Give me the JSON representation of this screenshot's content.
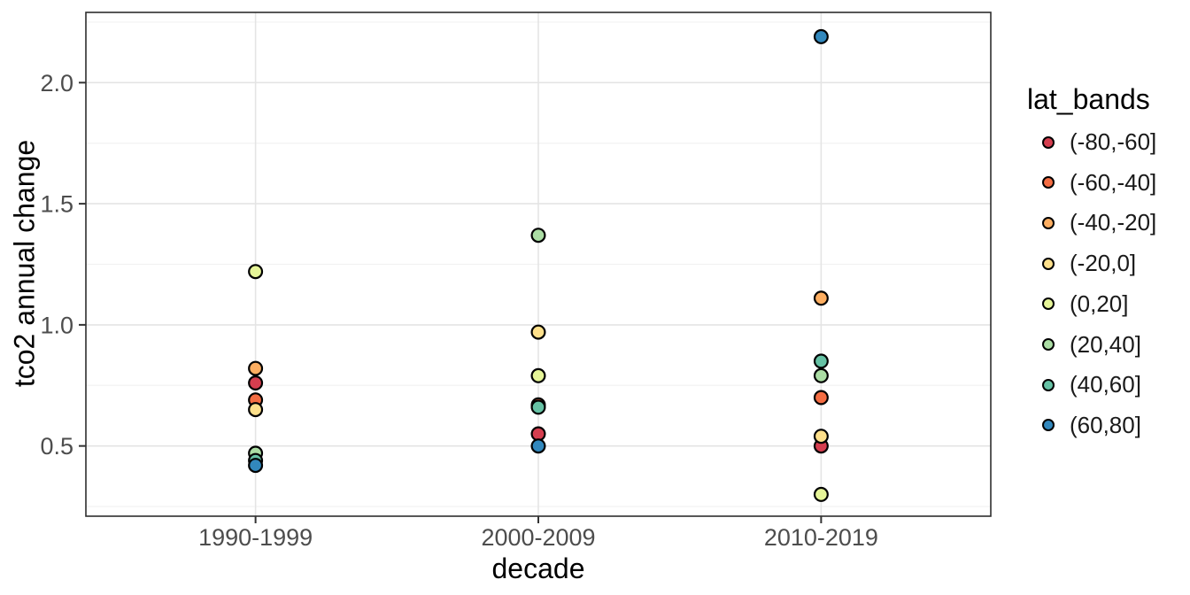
{
  "chart_data": {
    "type": "scatter",
    "title": "",
    "xlabel": "decade",
    "ylabel": "tco2 annual change",
    "categories": [
      "1990-1999",
      "2000-2009",
      "2010-2019"
    ],
    "series": [
      {
        "band": "(-80,-60]",
        "color": "#D53E4F",
        "values": [
          0.76,
          0.55,
          0.5
        ]
      },
      {
        "band": "(-60,-40]",
        "color": "#F46D43",
        "values": [
          0.69,
          0.67,
          0.7
        ]
      },
      {
        "band": "(-40,-20]",
        "color": "#FDAE61",
        "values": [
          0.82,
          null,
          1.11
        ]
      },
      {
        "band": "(-20,0]",
        "color": "#FEE08B",
        "values": [
          0.65,
          0.97,
          0.54
        ]
      },
      {
        "band": "(0,20]",
        "color": "#E6F598",
        "values": [
          1.22,
          0.79,
          0.3
        ]
      },
      {
        "band": "(20,40]",
        "color": "#ABDDA4",
        "values": [
          0.47,
          1.37,
          0.79
        ]
      },
      {
        "band": "(40,60]",
        "color": "#66C2A5",
        "values": [
          0.44,
          0.66,
          0.85
        ]
      },
      {
        "band": "(60,80]",
        "color": "#3288BD",
        "values": [
          0.42,
          0.5,
          2.19
        ]
      }
    ],
    "ylim": [
      0.21,
      2.29
    ],
    "yticks": [
      0.5,
      1.0,
      1.5,
      2.0
    ],
    "ytick_labels": [
      "0.5",
      "1.0",
      "1.5",
      "2.0"
    ],
    "yminor": [
      0.25,
      0.75,
      1.25,
      1.75,
      2.25
    ],
    "grid": true,
    "legend": {
      "title": "lat_bands",
      "position": "right"
    }
  },
  "colors": {
    "background": "#FFFFFF",
    "panel_border": "#2E2E2E",
    "grid_major": "#E4E4E4",
    "grid_minor": "#F2F2F2",
    "tick_mark": "#333333",
    "tick_label": "#4D4D4D",
    "axis_title": "#000000",
    "point_stroke": "#000000"
  }
}
